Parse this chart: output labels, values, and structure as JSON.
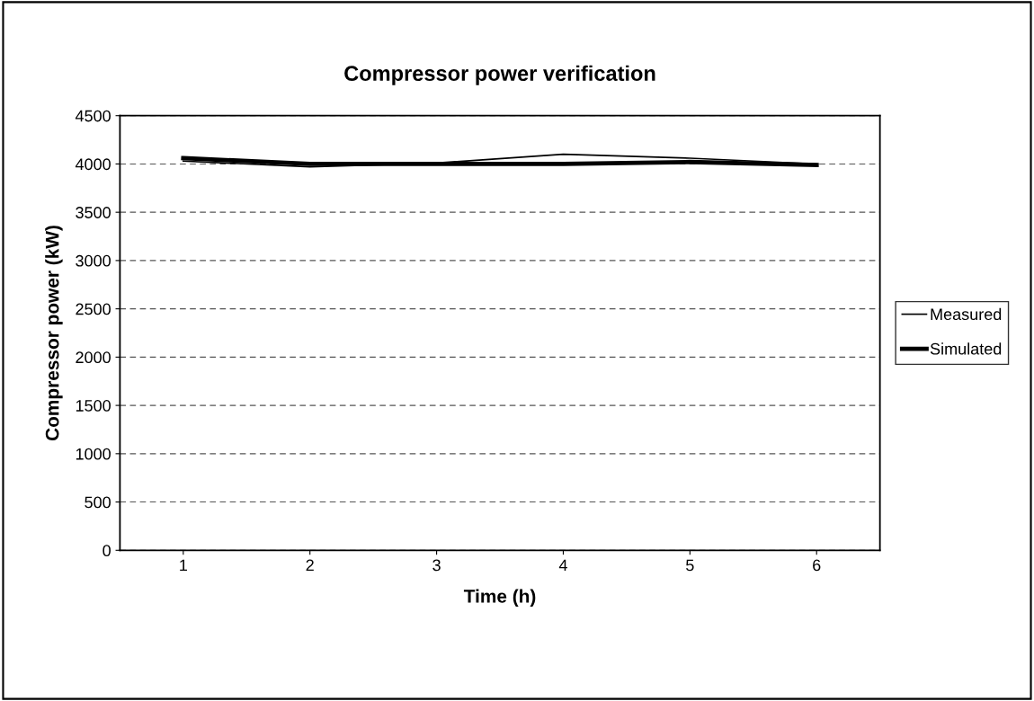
{
  "chart_data": {
    "type": "line",
    "title": "Compressor power verification",
    "xlabel": "Time (h)",
    "ylabel": "Compressor power (kW)",
    "categories": [
      "1",
      "2",
      "3",
      "4",
      "5",
      "6"
    ],
    "series": [
      {
        "name": "Measured",
        "color": "#000000",
        "values": [
          4030,
          3970,
          4010,
          4100,
          4060,
          4000
        ]
      },
      {
        "name": "Simulated",
        "color": "#000000",
        "values": [
          4060,
          4000,
          4000,
          4000,
          4020,
          3990
        ]
      }
    ],
    "ylim": [
      0,
      4500
    ],
    "yticks": [
      0,
      500,
      1000,
      1500,
      2000,
      2500,
      3000,
      3500,
      4000,
      4500
    ],
    "grid": "y",
    "legend": "right",
    "marker": "none",
    "line_style": "solid"
  }
}
